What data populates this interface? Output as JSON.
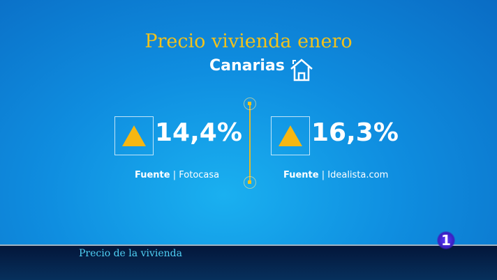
{
  "title": "Precio vivienda enero",
  "subtitle": "Canarias",
  "subtitle_icon": "house-icon",
  "stats": [
    {
      "value": "14,4%",
      "trend": "up",
      "source_label": "Fuente",
      "source_name": "Fotocasa"
    },
    {
      "value": "16,3%",
      "trend": "up",
      "source_label": "Fuente",
      "source_name": "Idealista.com"
    }
  ],
  "separator": "|",
  "ticker": {
    "text": "Precio de la vivienda"
  },
  "channel_logo": "1",
  "colors": {
    "accent": "#f2c21b",
    "ticker_text": "#4fd0f5",
    "background": "#0f8ee0"
  }
}
